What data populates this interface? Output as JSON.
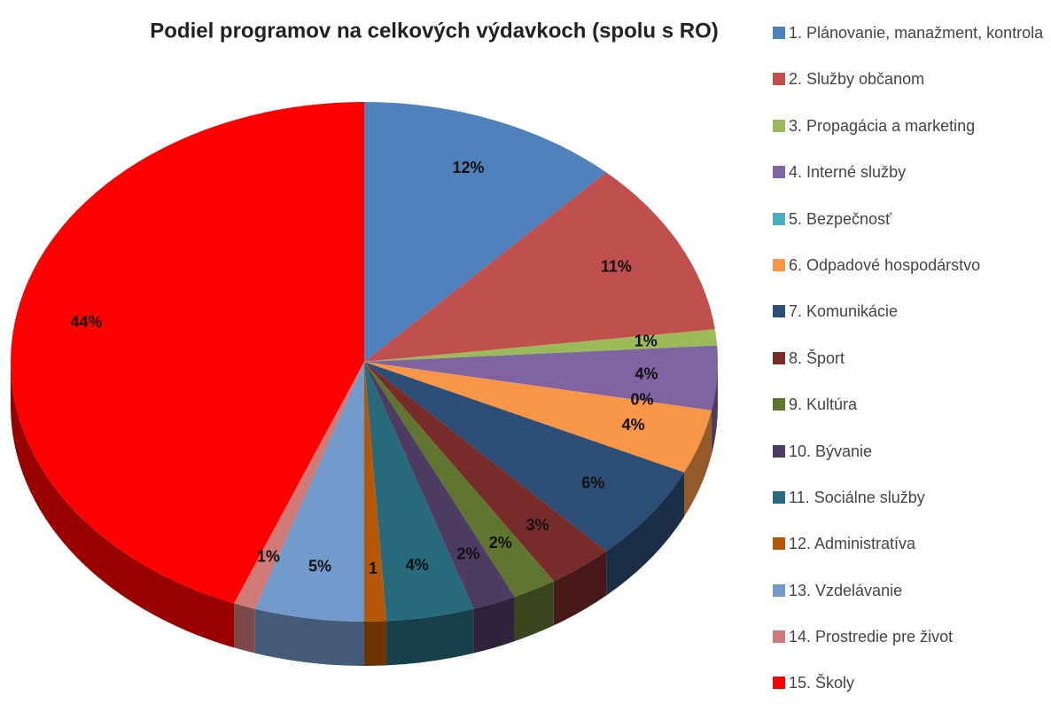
{
  "chart_data": {
    "type": "pie3d",
    "title": "Podiel programov na celkových výdavkoch (spolu s RO)",
    "categories": [
      "1. Plánovanie, manažment, kontrola",
      "2. Služby občanom",
      "3. Propagácia a marketing",
      "4. Interné služby",
      " 5. Bezpečnosť",
      "6. Odpadové hospodárstvo",
      "7. Komunikácie",
      "8. Šport",
      "9. Kultúra",
      "10. Bývanie",
      "11. Sociálne služby",
      "12. Administratíva",
      "13. Vzdelávanie",
      "14. Prostredie pre život",
      "15. Školy"
    ],
    "values": [
      12,
      11,
      1,
      4,
      0,
      4,
      6,
      3,
      2,
      2,
      4,
      1,
      5,
      1,
      44
    ],
    "value_labels": [
      "12%",
      "11%",
      "1%",
      "4%",
      "0%",
      "4%",
      "6%",
      "3%",
      "2%",
      "2%",
      "4%",
      "1",
      "5%",
      "1%",
      "44%"
    ],
    "colors": [
      "#4f81bd",
      "#c0504d",
      "#9bbb59",
      "#8064a2",
      "#4bacc6",
      "#f79646",
      "#2c4d75",
      "#772c2a",
      "#5f7530",
      "#4d3b62",
      "#276a7c",
      "#b65708",
      "#729aca",
      "#d07a78",
      "#ff0000"
    ],
    "legend": "right"
  }
}
